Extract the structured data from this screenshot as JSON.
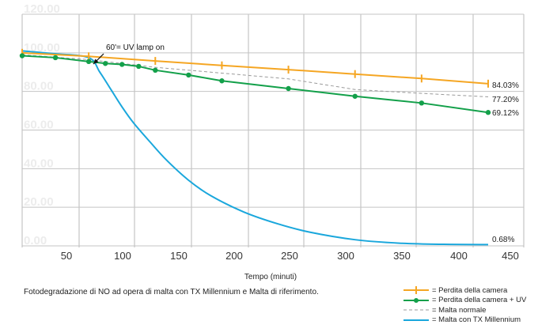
{
  "chart_data": {
    "type": "line",
    "title": "",
    "xlabel": "Tempo (minuti)",
    "ylabel": "",
    "xlim": [
      0,
      450
    ],
    "ylim": [
      0,
      120
    ],
    "x_ticks": [
      "50",
      "100",
      "150",
      "200",
      "250",
      "300",
      "350",
      "400",
      "450"
    ],
    "y_ticks": [
      "0.00",
      "20.00",
      "40.00",
      "60.00",
      "80.00",
      "100.00",
      "120.00"
    ],
    "annotation": {
      "text": "60'= UV lamp on",
      "x": 60,
      "y": 95
    },
    "caption": "Fotodegradazione di NO ad opera di malta con TX Millennium e Malta di riferimento.",
    "series": [
      {
        "name": "= Perdita della camera",
        "color": "#F5A623",
        "marker": "tick",
        "end_label": "84.03%",
        "x": [
          0,
          60,
          120,
          180,
          240,
          300,
          360,
          420
        ],
        "y": [
          100,
          98.2,
          95.8,
          93.5,
          91.3,
          89.0,
          86.7,
          84.03
        ]
      },
      {
        "name": "= Perdita della camera + UV",
        "color": "#13A04A",
        "marker": "circle",
        "end_label": "69.12%",
        "x": [
          0,
          30,
          60,
          75,
          90,
          105,
          120,
          150,
          180,
          240,
          300,
          360,
          420
        ],
        "y": [
          98.5,
          97.5,
          95.5,
          94.5,
          94.0,
          93.0,
          91.0,
          88.5,
          85.5,
          81.5,
          77.5,
          74.0,
          69.12
        ]
      },
      {
        "name": "= Malta normale",
        "color": "#9a9a9a",
        "marker": "none",
        "dashed": true,
        "end_label": "77.20%",
        "x": [
          0,
          60,
          120,
          180,
          240,
          300,
          360,
          420
        ],
        "y": [
          99,
          96.5,
          92.5,
          89.5,
          86.5,
          81,
          79,
          77.2
        ]
      },
      {
        "name": "= Malta con TX Millennium",
        "color": "#1AA7DC",
        "marker": "none",
        "end_label": "0.68%",
        "x": [
          0,
          30,
          60,
          70,
          80,
          90,
          100,
          115,
          130,
          150,
          170,
          200,
          230,
          260,
          300,
          340,
          380,
          420
        ],
        "y": [
          101,
          99.5,
          97.5,
          90,
          81,
          72,
          64,
          54,
          44.5,
          34,
          26,
          17.5,
          11.5,
          7,
          3.2,
          1.4,
          0.8,
          0.68
        ]
      }
    ]
  }
}
